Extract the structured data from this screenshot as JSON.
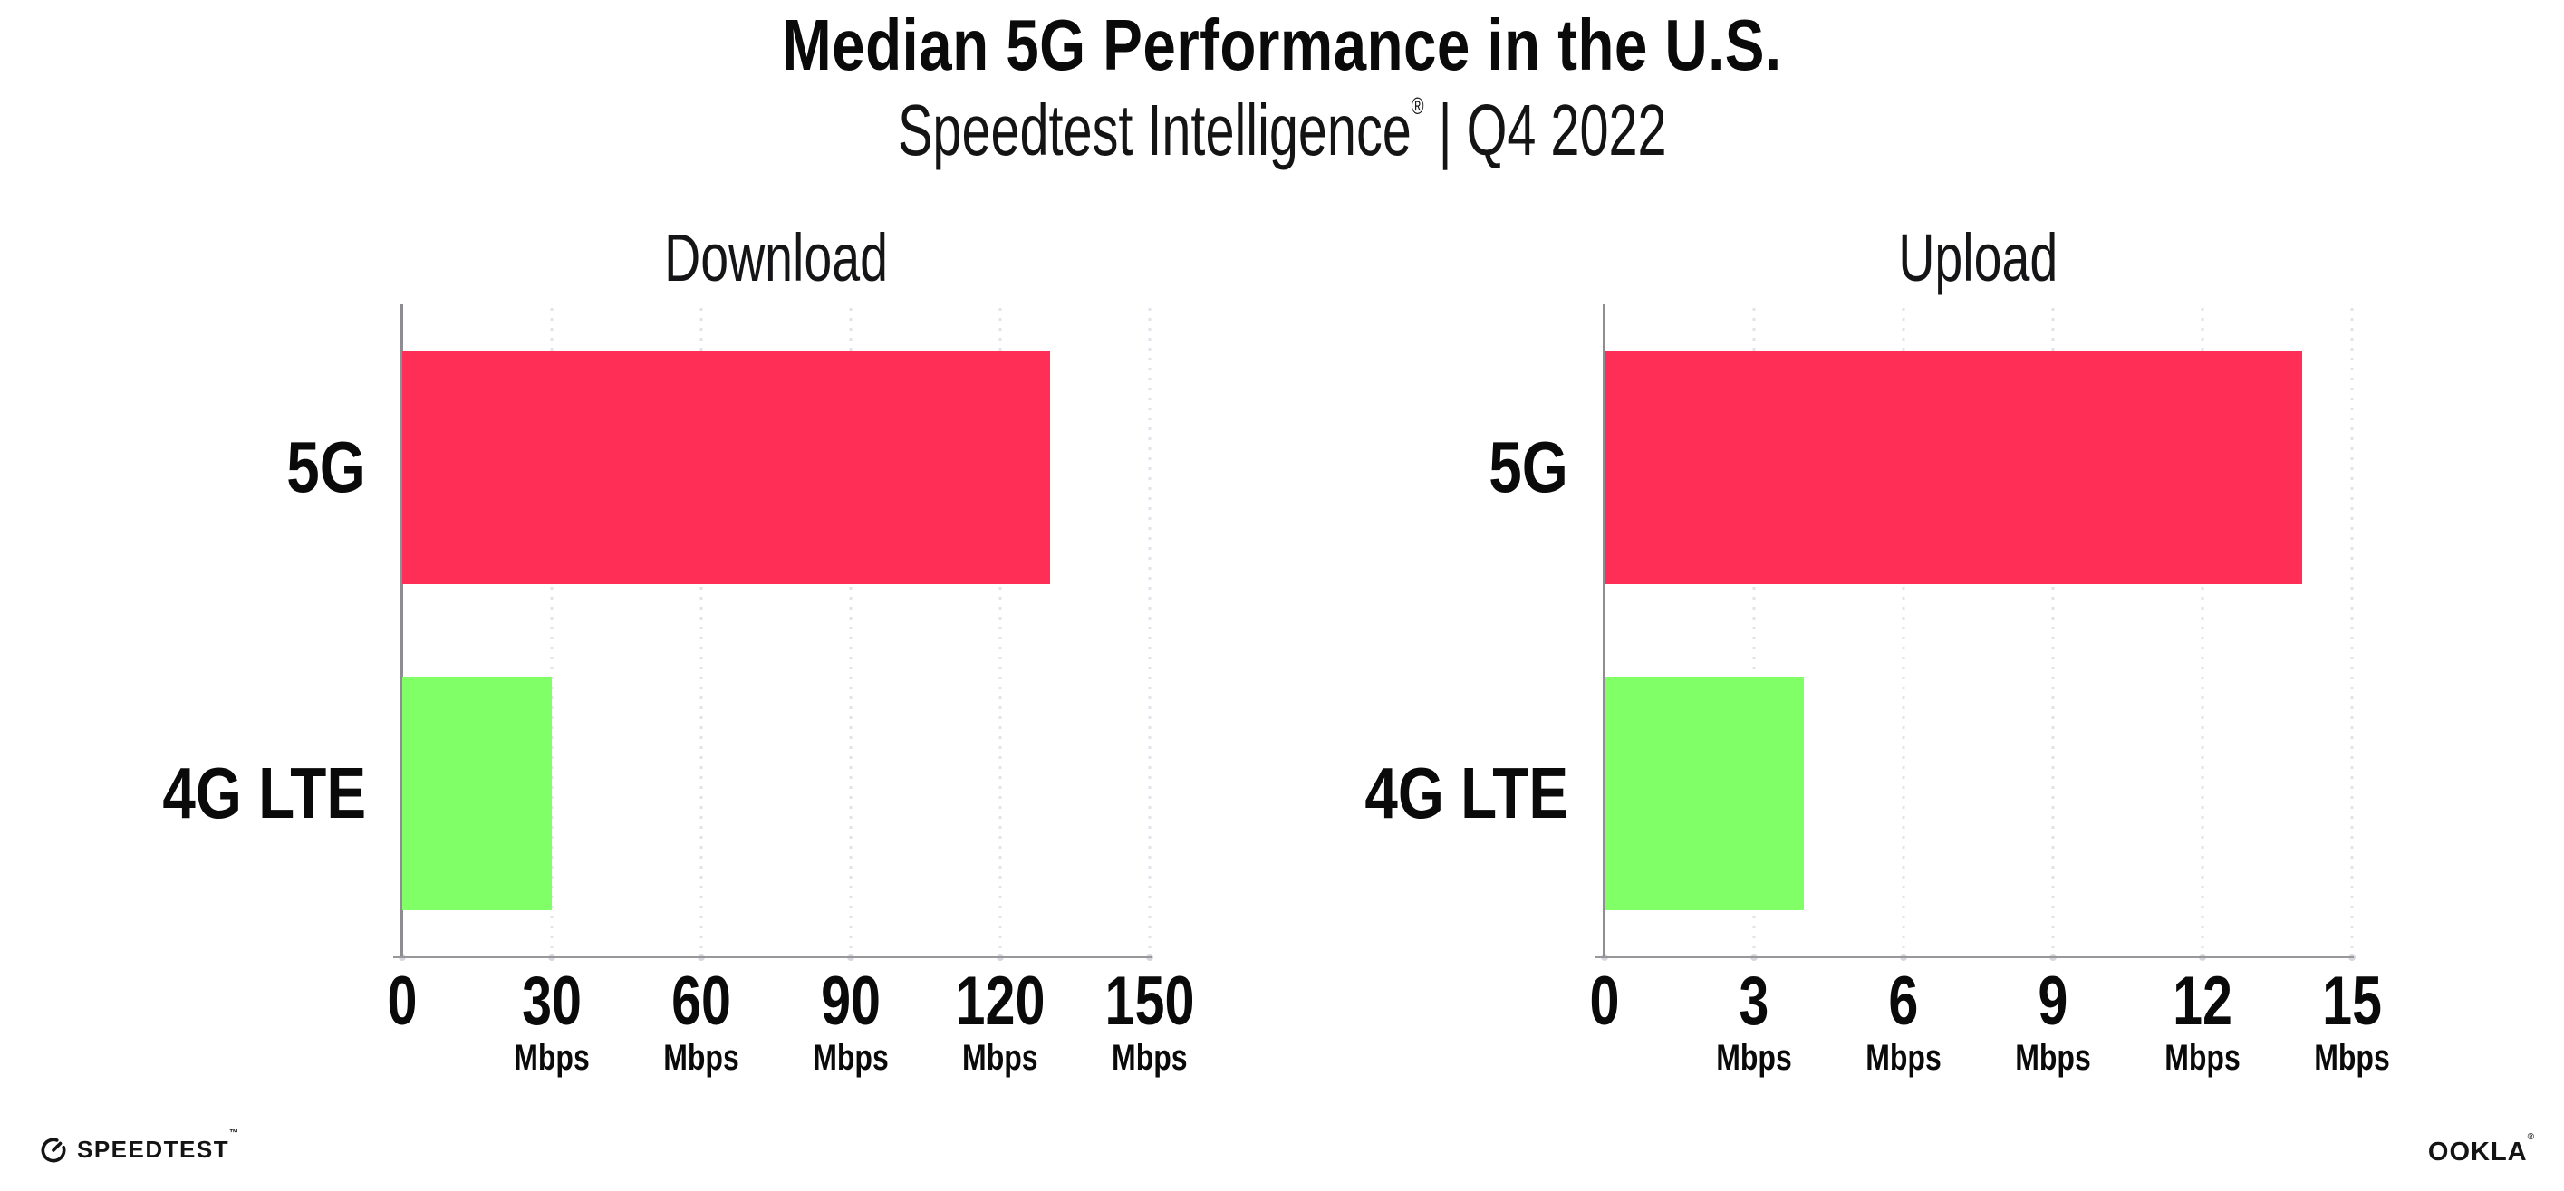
{
  "header": {
    "title": "Median 5G Performance in the U.S.",
    "subtitle_brand": "Speedtest Intelligence",
    "subtitle_reg": "®",
    "subtitle_rest": " | Q4 2022"
  },
  "colors": {
    "bars": [
      "#ff2e56",
      "#80ff66"
    ],
    "gridline": "#e2e3ea",
    "axis": "#98989c",
    "text": "#0c0c0d",
    "background": "#ffffff"
  },
  "footer": {
    "speedtest_text": "SPEEDTEST",
    "speedtest_tm": "™",
    "speedtest_icon": "gauge-icon",
    "ookla_text": "OOKLA",
    "ookla_reg": "®"
  },
  "chart_data": [
    {
      "type": "bar",
      "orientation": "horizontal",
      "title": "Download",
      "categories": [
        "5G",
        "4G LTE"
      ],
      "values": [
        130,
        30
      ],
      "unit": "Mbps",
      "xlim": [
        0,
        150
      ],
      "ticks": [
        0,
        30,
        60,
        90,
        120,
        150
      ],
      "tick_unit_label": "Mbps",
      "grid": "vertical-dotted",
      "legend": "none"
    },
    {
      "type": "bar",
      "orientation": "horizontal",
      "title": "Upload",
      "categories": [
        "5G",
        "4G LTE"
      ],
      "values": [
        14,
        4
      ],
      "unit": "Mbps",
      "xlim": [
        0,
        15
      ],
      "ticks": [
        0,
        3,
        6,
        9,
        12,
        15
      ],
      "tick_unit_label": "Mbps",
      "grid": "vertical-dotted",
      "legend": "none"
    }
  ]
}
